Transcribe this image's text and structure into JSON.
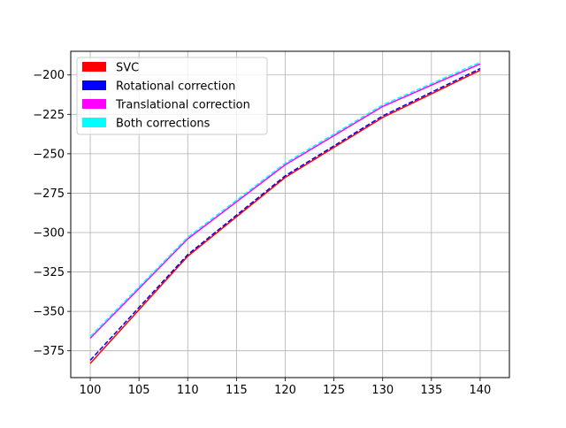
{
  "chart_data": {
    "type": "line",
    "title": "",
    "xlabel": "",
    "ylabel": "",
    "x": [
      100,
      110,
      120,
      130,
      140
    ],
    "xlim": [
      98,
      143
    ],
    "ylim": [
      -392,
      -185
    ],
    "xticks": [
      100,
      105,
      110,
      115,
      120,
      125,
      130,
      135,
      140
    ],
    "yticks": [
      -375,
      -350,
      -325,
      -300,
      -275,
      -250,
      -225,
      -200
    ],
    "xtick_labels": [
      "100",
      "105",
      "110",
      "115",
      "120",
      "125",
      "130",
      "135",
      "140"
    ],
    "ytick_labels": [
      "−375",
      "−350",
      "−325",
      "−300",
      "−275",
      "−250",
      "−225",
      "−200"
    ],
    "grid": true,
    "legend_position": "top-left",
    "series": [
      {
        "name": "SVC",
        "color": "#ff0000",
        "style": "solid",
        "values": [
          -383,
          -315,
          -265,
          -227,
          -197
        ]
      },
      {
        "name": "Rotational correction",
        "color": "#0000ff",
        "style": "dashed",
        "values": [
          -381,
          -314,
          -264,
          -226,
          -196
        ]
      },
      {
        "name": "Translational correction",
        "color": "#ff00ff",
        "style": "solid",
        "values": [
          -367,
          -304,
          -257,
          -220,
          -193
        ]
      },
      {
        "name": "Both corrections",
        "color": "#00ffff",
        "style": "dashed",
        "values": [
          -366,
          -303,
          -256,
          -219,
          -192
        ]
      }
    ]
  }
}
